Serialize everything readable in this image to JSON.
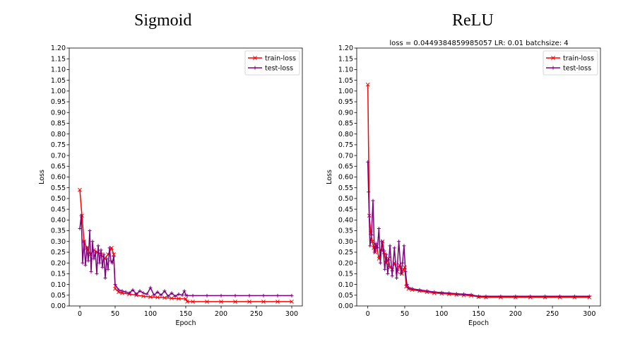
{
  "charts": [
    {
      "panel_title": "Sigmoid",
      "cropped_header": "",
      "xlabel": "Epoch",
      "ylabel": "Loss"
    },
    {
      "panel_title": "ReLU",
      "cropped_header": "loss = 0.0449384859985057  LR: 0.01  batchsize: 4",
      "xlabel": "Epoch",
      "ylabel": "Loss"
    }
  ],
  "chart_data": [
    {
      "type": "line",
      "title": "Sigmoid",
      "xlabel": "Epoch",
      "ylabel": "Loss",
      "xlim": [
        -15,
        315
      ],
      "ylim": [
        0,
        1.2
      ],
      "xticks": [
        0,
        50,
        100,
        150,
        200,
        250,
        300
      ],
      "yticks": [
        0,
        0.05,
        0.1,
        0.15,
        0.2,
        0.25,
        0.3,
        0.35,
        0.4,
        0.45,
        0.5,
        0.55,
        0.6,
        0.65,
        0.7,
        0.75,
        0.8,
        0.85,
        0.9,
        0.95,
        1.0,
        1.05,
        1.1,
        1.15,
        1.2
      ],
      "legend": "top-right",
      "grid": false,
      "series": [
        {
          "name": "train-loss",
          "color": "#ff0000",
          "marker": "x",
          "x": [
            0,
            3,
            6,
            10,
            15,
            20,
            25,
            30,
            35,
            40,
            45,
            48,
            50,
            55,
            60,
            70,
            80,
            90,
            100,
            110,
            120,
            130,
            140,
            150,
            152,
            160,
            180,
            200,
            220,
            240,
            260,
            280,
            300
          ],
          "y": [
            0.54,
            0.42,
            0.3,
            0.27,
            0.24,
            0.26,
            0.25,
            0.24,
            0.22,
            0.24,
            0.27,
            0.24,
            0.08,
            0.065,
            0.06,
            0.055,
            0.05,
            0.045,
            0.042,
            0.04,
            0.038,
            0.036,
            0.034,
            0.033,
            0.02,
            0.02,
            0.02,
            0.02,
            0.02,
            0.02,
            0.02,
            0.02,
            0.02
          ]
        },
        {
          "name": "test-loss",
          "color": "#800080",
          "marker": "+",
          "x": [
            0,
            2,
            4,
            6,
            8,
            10,
            12,
            14,
            16,
            18,
            20,
            22,
            24,
            26,
            28,
            30,
            32,
            34,
            36,
            38,
            40,
            42,
            44,
            46,
            48,
            50,
            55,
            60,
            65,
            70,
            75,
            80,
            85,
            90,
            95,
            100,
            105,
            110,
            115,
            120,
            125,
            130,
            135,
            140,
            145,
            148,
            150,
            152,
            160,
            180,
            200,
            220,
            240,
            260,
            280,
            300
          ],
          "y": [
            0.36,
            0.42,
            0.2,
            0.3,
            0.19,
            0.27,
            0.21,
            0.35,
            0.16,
            0.3,
            0.22,
            0.25,
            0.15,
            0.28,
            0.2,
            0.26,
            0.18,
            0.24,
            0.13,
            0.22,
            0.17,
            0.27,
            0.21,
            0.2,
            0.23,
            0.1,
            0.075,
            0.07,
            0.065,
            0.06,
            0.075,
            0.055,
            0.07,
            0.06,
            0.055,
            0.085,
            0.05,
            0.065,
            0.05,
            0.07,
            0.045,
            0.06,
            0.045,
            0.055,
            0.05,
            0.07,
            0.05,
            0.048,
            0.048,
            0.048,
            0.048,
            0.048,
            0.048,
            0.048,
            0.048,
            0.048
          ]
        }
      ]
    },
    {
      "type": "line",
      "title": "ReLU",
      "xlabel": "Epoch",
      "ylabel": "Loss",
      "xlim": [
        -15,
        315
      ],
      "ylim": [
        0,
        1.2
      ],
      "xticks": [
        0,
        50,
        100,
        150,
        200,
        250,
        300
      ],
      "yticks": [
        0,
        0.05,
        0.1,
        0.15,
        0.2,
        0.25,
        0.3,
        0.35,
        0.4,
        0.45,
        0.5,
        0.55,
        0.6,
        0.65,
        0.7,
        0.75,
        0.8,
        0.85,
        0.9,
        0.95,
        1.0,
        1.05,
        1.1,
        1.15,
        1.2
      ],
      "legend": "top-right",
      "grid": false,
      "series": [
        {
          "name": "train-loss",
          "color": "#ff0000",
          "marker": "x",
          "x": [
            0,
            2,
            4,
            6,
            8,
            10,
            12,
            15,
            18,
            20,
            22,
            25,
            28,
            30,
            33,
            36,
            40,
            43,
            46,
            48,
            50,
            52,
            55,
            60,
            70,
            80,
            90,
            100,
            110,
            120,
            130,
            140,
            150,
            160,
            180,
            200,
            220,
            240,
            260,
            280,
            300
          ],
          "y": [
            1.03,
            0.42,
            0.34,
            0.3,
            0.27,
            0.25,
            0.28,
            0.22,
            0.26,
            0.3,
            0.25,
            0.2,
            0.22,
            0.18,
            0.17,
            0.2,
            0.16,
            0.19,
            0.15,
            0.17,
            0.18,
            0.09,
            0.08,
            0.075,
            0.07,
            0.065,
            0.06,
            0.058,
            0.055,
            0.052,
            0.05,
            0.048,
            0.042,
            0.04,
            0.04,
            0.04,
            0.04,
            0.04,
            0.04,
            0.04,
            0.04
          ]
        },
        {
          "name": "test-loss",
          "color": "#800080",
          "marker": "+",
          "x": [
            0,
            1,
            3,
            5,
            7,
            9,
            11,
            13,
            15,
            17,
            19,
            21,
            23,
            25,
            27,
            30,
            33,
            36,
            39,
            42,
            45,
            47,
            49,
            51,
            53,
            55,
            60,
            70,
            80,
            90,
            100,
            110,
            120,
            130,
            140,
            150,
            160,
            180,
            200,
            220,
            240,
            260,
            280,
            300
          ],
          "y": [
            0.67,
            0.53,
            0.28,
            0.33,
            0.49,
            0.25,
            0.29,
            0.27,
            0.36,
            0.2,
            0.3,
            0.26,
            0.17,
            0.24,
            0.15,
            0.28,
            0.14,
            0.27,
            0.13,
            0.3,
            0.15,
            0.2,
            0.28,
            0.16,
            0.1,
            0.085,
            0.08,
            0.075,
            0.07,
            0.065,
            0.062,
            0.06,
            0.057,
            0.055,
            0.052,
            0.045,
            0.045,
            0.045,
            0.045,
            0.045,
            0.045,
            0.045,
            0.045,
            0.045
          ]
        }
      ]
    }
  ]
}
